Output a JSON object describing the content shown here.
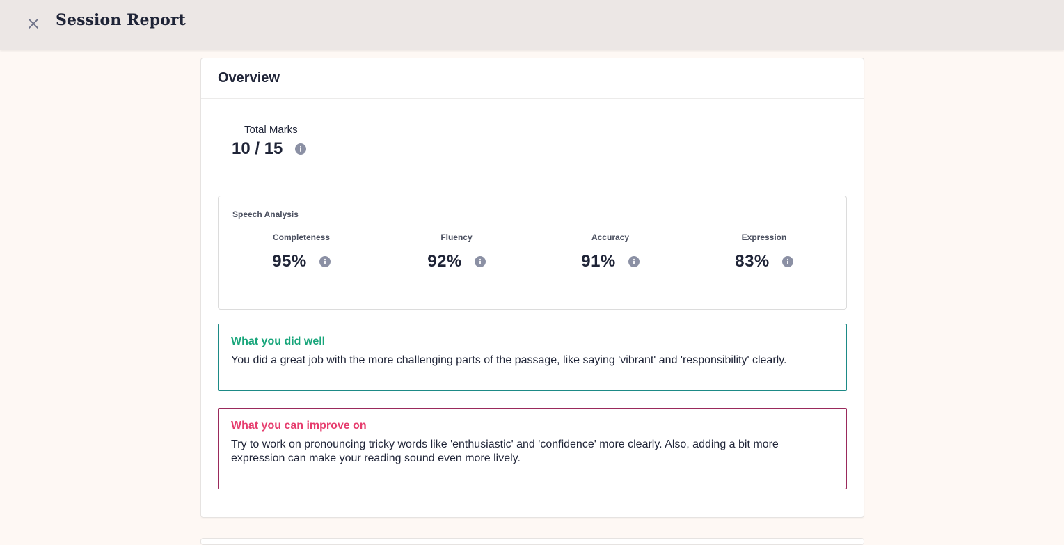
{
  "header": {
    "title": "Session Report",
    "close_icon": "close-icon"
  },
  "overview": {
    "title": "Overview",
    "total_marks": {
      "label": "Total Marks",
      "value": "10 / 15",
      "info_icon": "info-icon"
    },
    "speech_analysis": {
      "title": "Speech Analysis",
      "metrics": [
        {
          "label": "Completeness",
          "value": "95%"
        },
        {
          "label": "Fluency",
          "value": "92%"
        },
        {
          "label": "Accuracy",
          "value": "91%"
        },
        {
          "label": "Expression",
          "value": "83%"
        }
      ]
    },
    "did_well": {
      "title": "What you did well",
      "text": "You did a great job with the more challenging parts of the passage, like saying 'vibrant' and 'responsibility' clearly.",
      "accent_color": "#17a57a"
    },
    "improve": {
      "title": "What you can improve on",
      "text": "Try to work on pronouncing tricky words like 'enthusiastic' and 'confidence' more clearly. Also, adding a bit more expression can make your reading sound even more lively.",
      "accent_color": "#e63d6e"
    }
  }
}
